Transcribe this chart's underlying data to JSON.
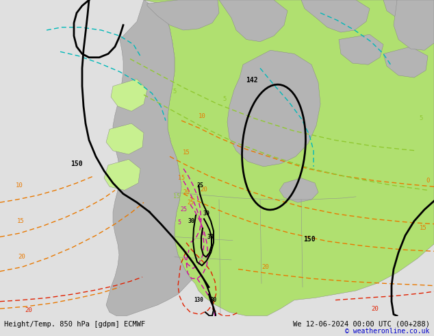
{
  "title_left": "Height/Temp. 850 hPa [gdpm] ECMWF",
  "title_right": "We 12-06-2024 00:00 UTC (00+288)",
  "copyright": "© weatheronline.co.uk",
  "bg_color": "#e0e0e0",
  "ocean_color": "#e0e0e0",
  "land_green": "#b0e070",
  "land_green_light": "#c8f090",
  "land_gray": "#b4b4b4",
  "figsize": [
    6.34,
    4.9
  ],
  "dpi": 100,
  "font_size_title": 7.5,
  "font_size_copyright": 7
}
